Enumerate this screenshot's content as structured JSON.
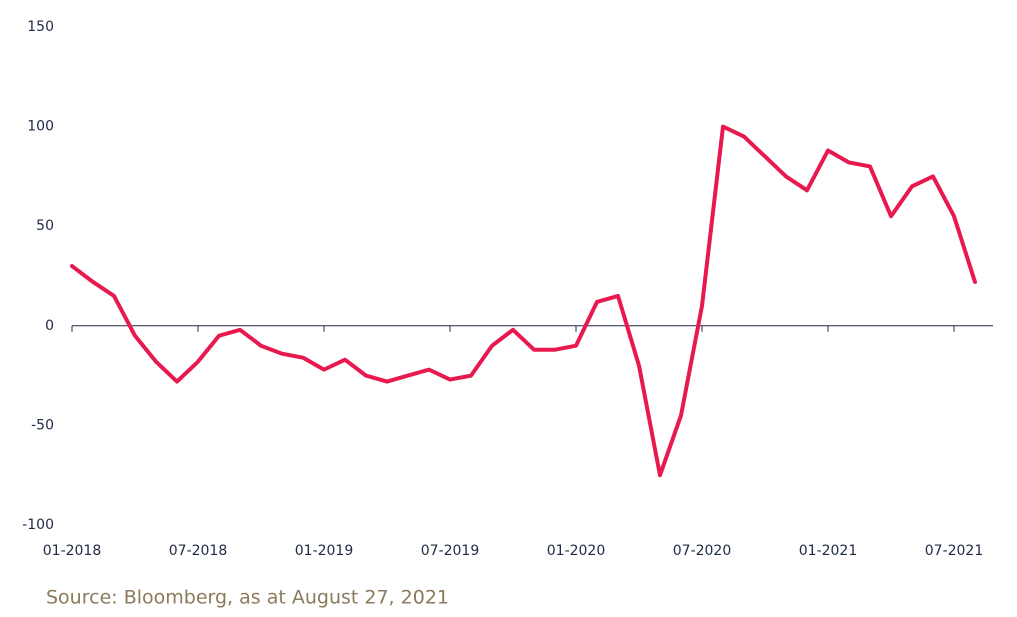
{
  "chart_data": {
    "type": "line",
    "x": [
      "01-2018",
      "02-2018",
      "03-2018",
      "04-2018",
      "05-2018",
      "06-2018",
      "07-2018",
      "08-2018",
      "09-2018",
      "10-2018",
      "11-2018",
      "12-2018",
      "01-2019",
      "02-2019",
      "03-2019",
      "04-2019",
      "05-2019",
      "06-2019",
      "07-2019",
      "08-2019",
      "09-2019",
      "10-2019",
      "11-2019",
      "12-2019",
      "01-2020",
      "02-2020",
      "03-2020",
      "04-2020",
      "05-2020",
      "06-2020",
      "07-2020",
      "08-2020",
      "09-2020",
      "10-2020",
      "11-2020",
      "12-2020",
      "01-2021",
      "02-2021",
      "03-2021",
      "04-2021",
      "05-2021",
      "06-2021",
      "07-2021",
      "08-2021"
    ],
    "series": [
      {
        "color": "#e8194f",
        "values": [
          30,
          22,
          15,
          -5,
          -18,
          -28,
          -18,
          -5,
          -2,
          -10,
          -14,
          -16,
          -22,
          -17,
          -25,
          -28,
          -25,
          -22,
          -27,
          -25,
          -10,
          -2,
          -12,
          -12,
          -10,
          12,
          15,
          -20,
          -75,
          -45,
          10,
          100,
          95,
          85,
          75,
          68,
          88,
          82,
          80,
          55,
          70,
          75,
          55,
          22
        ]
      }
    ],
    "ylim": [
      -100,
      150
    ],
    "yticks": [
      -100,
      -50,
      0,
      50,
      100,
      150
    ],
    "xticks": [
      "01-2018",
      "07-2018",
      "01-2019",
      "07-2019",
      "01-2020",
      "07-2020",
      "01-2021",
      "07-2021"
    ],
    "source": "Source: Bloomberg, as at August 27, 2021"
  }
}
